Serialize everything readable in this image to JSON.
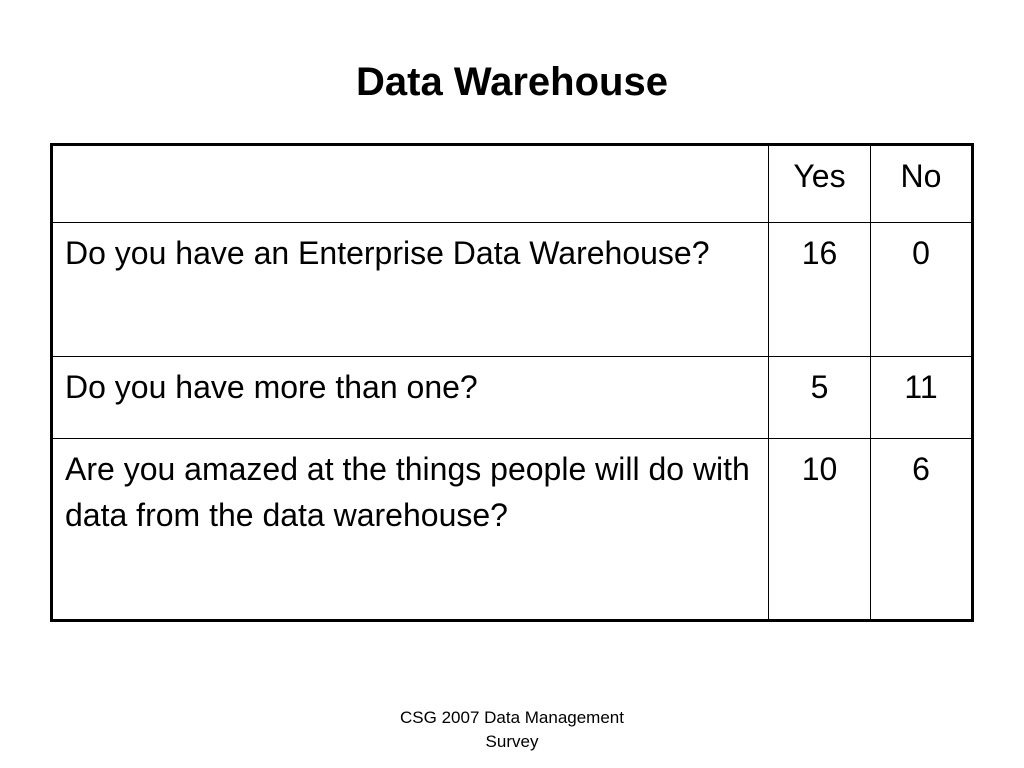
{
  "slide": {
    "title": "Data Warehouse",
    "footer_line1": "CSG 2007 Data Management",
    "footer_line2": "Survey"
  },
  "table": {
    "columns": [
      "",
      "Yes",
      "No"
    ],
    "rows": [
      {
        "question": "Do you have an Enterprise Data Warehouse?",
        "yes": "16",
        "no": "0"
      },
      {
        "question": "Do you have more than one?",
        "yes": "5",
        "no": "11"
      },
      {
        "question": "Are you amazed at the things people will do with data from the data warehouse?",
        "yes": "10",
        "no": "6"
      }
    ]
  }
}
